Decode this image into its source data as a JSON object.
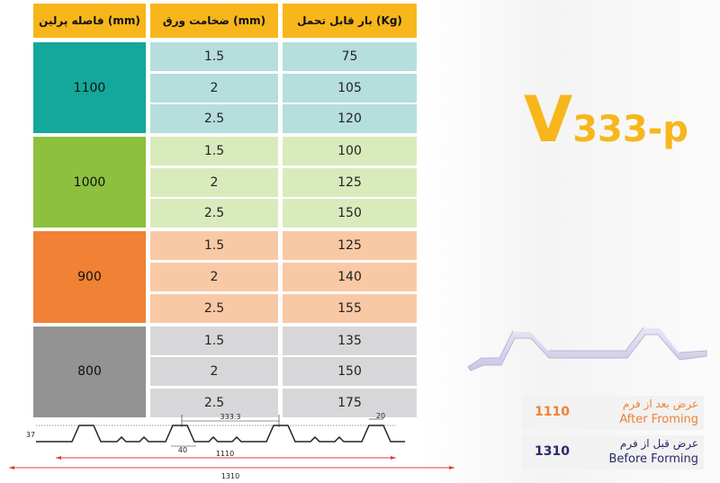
{
  "headers": {
    "purlin": "فاصله پرلین (mm)",
    "thickness": "ضخامت ورق (mm)",
    "load": "بار قابل تحمل (Kg)"
  },
  "groups": [
    {
      "purlin": "1100",
      "color": "#13a89a",
      "row_color": "#b5dedd",
      "rows": [
        {
          "thickness": "1.5",
          "load": "75"
        },
        {
          "thickness": "2",
          "load": "105"
        },
        {
          "thickness": "2.5",
          "load": "120"
        }
      ]
    },
    {
      "purlin": "1000",
      "color": "#8dc03f",
      "row_color": "#d9ebbc",
      "rows": [
        {
          "thickness": "1.5",
          "load": "100"
        },
        {
          "thickness": "2",
          "load": "125"
        },
        {
          "thickness": "2.5",
          "load": "150"
        }
      ]
    },
    {
      "purlin": "900",
      "color": "#f08135",
      "row_color": "#f9c9a5",
      "rows": [
        {
          "thickness": "1.5",
          "load": "125"
        },
        {
          "thickness": "2",
          "load": "140"
        },
        {
          "thickness": "2.5",
          "load": "155"
        }
      ]
    },
    {
      "purlin": "800",
      "color": "#939393",
      "row_color": "#d7d7d9",
      "rows": [
        {
          "thickness": "1.5",
          "load": "135"
        },
        {
          "thickness": "2",
          "load": "150"
        },
        {
          "thickness": "2.5",
          "load": "175"
        }
      ]
    }
  ],
  "title": {
    "letter": "V",
    "model": "333-p"
  },
  "widths": {
    "after": {
      "value": "1110",
      "label_fa": "عرض بعد از فرم",
      "label_en": "After Froming",
      "color": "#f08135"
    },
    "before": {
      "value": "1310",
      "label_fa": "عرض قبل از فرم",
      "label_en": "Before Forming",
      "color": "#2a2a6a"
    }
  },
  "profile": {
    "height": "37",
    "pitch": "333.3",
    "rib_top": "20",
    "rib_base": "40",
    "after_width": "1110",
    "before_width": "1310"
  }
}
